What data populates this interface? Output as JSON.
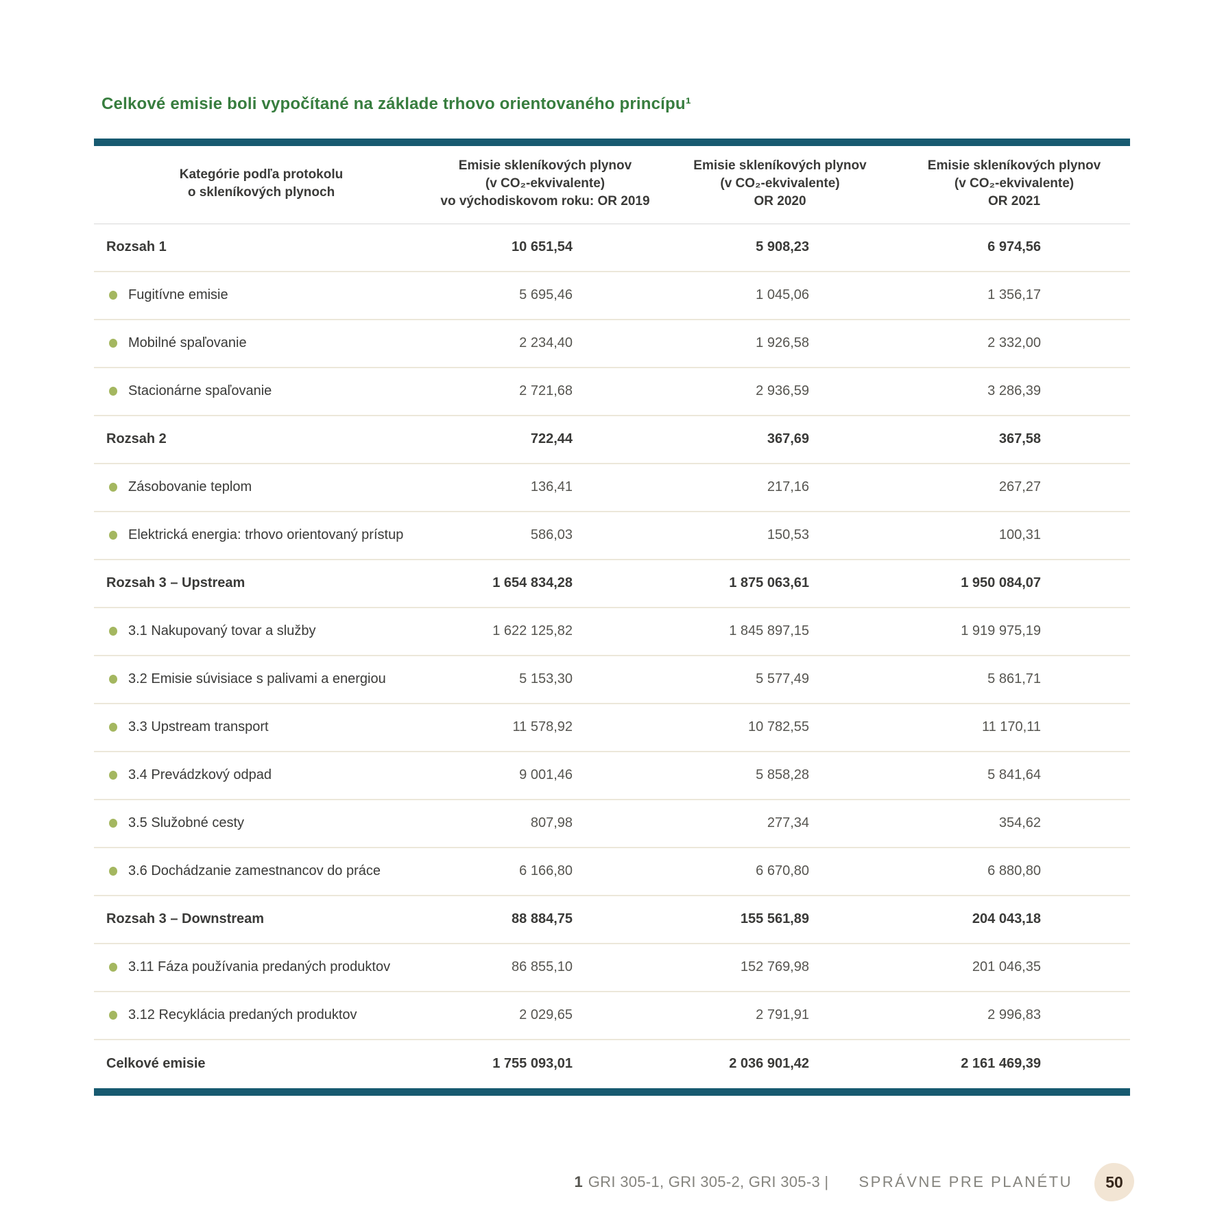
{
  "title": "Celkové emisie boli vypočítané na základe trhovo orientovaného princípu¹",
  "colors": {
    "title_green": "#377d3e",
    "teal_bar": "#175a70",
    "bullet_olive": "#a4b760",
    "separator_beige": "#ece7da",
    "badge_beige": "#f2e5d4"
  },
  "table": {
    "columns": [
      {
        "id": "category",
        "lines": [
          "Kategórie podľa protokolu",
          "o skleníkových plynoch"
        ]
      },
      {
        "id": "or2019",
        "lines": [
          "Emisie skleníkových plynov",
          "(v CO₂-ekvivalente)",
          "vo východiskovom roku: OR 2019"
        ]
      },
      {
        "id": "or2020",
        "lines": [
          "Emisie skleníkových plynov",
          "(v CO₂-ekvivalente)",
          "OR 2020"
        ]
      },
      {
        "id": "or2021",
        "lines": [
          "Emisie skleníkových plynov",
          "(v CO₂-ekvivalente)",
          "OR 2021"
        ]
      }
    ],
    "rows": [
      {
        "type": "section",
        "label": "Rozsah 1",
        "values": [
          "10 651,54",
          "5 908,23",
          "6 974,56"
        ]
      },
      {
        "type": "item",
        "label": "Fugitívne emisie",
        "values": [
          "5 695,46",
          "1 045,06",
          "1 356,17"
        ]
      },
      {
        "type": "item",
        "label": "Mobilné spaľovanie",
        "values": [
          "2 234,40",
          "1 926,58",
          "2 332,00"
        ]
      },
      {
        "type": "item",
        "label": "Stacionárne spaľovanie",
        "values": [
          "2 721,68",
          "2 936,59",
          "3 286,39"
        ]
      },
      {
        "type": "section",
        "label": "Rozsah 2",
        "values": [
          "722,44",
          "367,69",
          "367,58"
        ]
      },
      {
        "type": "item",
        "label": "Zásobovanie teplom",
        "values": [
          "136,41",
          "217,16",
          "267,27"
        ]
      },
      {
        "type": "item",
        "label": "Elektrická energia: trhovo orientovaný prístup",
        "values": [
          "586,03",
          "150,53",
          "100,31"
        ]
      },
      {
        "type": "section",
        "label": "Rozsah 3 – Upstream",
        "values": [
          "1 654 834,28",
          "1 875 063,61",
          "1 950 084,07"
        ]
      },
      {
        "type": "item",
        "label": "3.1 Nakupovaný tovar a služby",
        "values": [
          "1 622 125,82",
          "1 845 897,15",
          "1 919 975,19"
        ]
      },
      {
        "type": "item",
        "label": "3.2 Emisie súvisiace s palivami a energiou",
        "values": [
          "5 153,30",
          "5 577,49",
          "5 861,71"
        ]
      },
      {
        "type": "item",
        "label": "3.3 Upstream transport",
        "values": [
          "11 578,92",
          "10 782,55",
          "11 170,11"
        ]
      },
      {
        "type": "item",
        "label": "3.4 Prevádzkový odpad",
        "values": [
          "9 001,46",
          "5 858,28",
          "5 841,64"
        ]
      },
      {
        "type": "item",
        "label": "3.5 Služobné cesty",
        "values": [
          "807,98",
          "277,34",
          "354,62"
        ]
      },
      {
        "type": "item",
        "label": "3.6 Dochádzanie zamestnancov do práce",
        "values": [
          "6 166,80",
          "6 670,80",
          "6 880,80"
        ]
      },
      {
        "type": "section",
        "label": "Rozsah 3 – Downstream",
        "values": [
          "88 884,75",
          "155 561,89",
          "204 043,18"
        ]
      },
      {
        "type": "item",
        "label": "3.11 Fáza používania predaných produktov",
        "values": [
          "86 855,10",
          "152 769,98",
          "201 046,35"
        ]
      },
      {
        "type": "item",
        "label": "3.12 Recyklácia predaných produktov",
        "values": [
          "2 029,65",
          "2 791,91",
          "2 996,83"
        ]
      },
      {
        "type": "total",
        "label": "Celkové emisie",
        "values": [
          "1 755 093,01",
          "2 036 901,42",
          "2 161 469,39"
        ]
      }
    ]
  },
  "footer": {
    "note_number": "1",
    "note_gri": "GRI 305-1, GRI 305-2, GRI 305-3 |",
    "section_label": "SPRÁVNE PRE PLANÉTU",
    "page_number": "50"
  }
}
